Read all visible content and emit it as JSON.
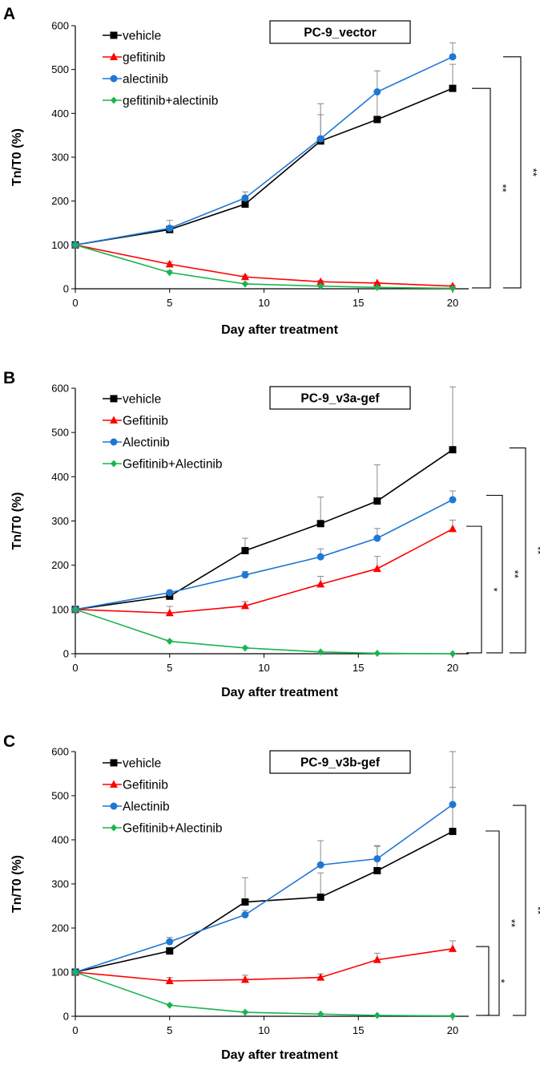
{
  "chart_data": [
    {
      "type": "line",
      "panel_label": "A",
      "title": "PC-9_vector",
      "xlabel": "Day after treatment",
      "ylabel": "Tn/T0  (%)",
      "x": [
        0,
        5,
        9,
        13,
        16,
        20
      ],
      "xticks": [
        "0",
        "5",
        "10",
        "15",
        "20"
      ],
      "yticks": [
        "0",
        "100",
        "200",
        "300",
        "400",
        "500",
        "600"
      ],
      "xlim": [
        0,
        20
      ],
      "ylim": [
        0,
        600
      ],
      "legend_position": "top-left",
      "series": [
        {
          "name": "vehicle",
          "color": "#000000",
          "marker": "square",
          "values": [
            100,
            135,
            193,
            337,
            386,
            457
          ],
          "errors": [
            0,
            8,
            10,
            60,
            65,
            55
          ]
        },
        {
          "name": "gefitinib",
          "color": "#ff0000",
          "marker": "triangle",
          "values": [
            100,
            56,
            27,
            16,
            13,
            6
          ],
          "errors": [
            0,
            5,
            4,
            3,
            2,
            2
          ]
        },
        {
          "name": "alectinib",
          "color": "#1f77d4",
          "marker": "circle",
          "values": [
            100,
            138,
            207,
            342,
            449,
            529
          ],
          "errors": [
            0,
            18,
            14,
            80,
            48,
            32
          ]
        },
        {
          "name": "gefitinib+alectinib",
          "color": "#19b54e",
          "marker": "diamond",
          "values": [
            100,
            37,
            11,
            6,
            3,
            1
          ],
          "errors": [
            0,
            4,
            2,
            1,
            1,
            0
          ]
        }
      ],
      "significance": [
        {
          "label": "**",
          "from_value": 2,
          "to_value": 457
        },
        {
          "label": "**",
          "from_value": 2,
          "to_value": 529
        }
      ]
    },
    {
      "type": "line",
      "panel_label": "B",
      "title": "PC-9_v3a-gef",
      "xlabel": "Day after treatment",
      "ylabel": "Tn/T0  (%)",
      "x": [
        0,
        5,
        9,
        13,
        16,
        20
      ],
      "xticks": [
        "0",
        "5",
        "10",
        "15",
        "20"
      ],
      "yticks": [
        "0",
        "100",
        "200",
        "300",
        "400",
        "500",
        "600"
      ],
      "xlim": [
        0,
        20
      ],
      "ylim": [
        0,
        600
      ],
      "legend_position": "top-left",
      "series": [
        {
          "name": "vehicle",
          "color": "#000000",
          "marker": "square",
          "values": [
            100,
            130,
            233,
            294,
            345,
            461
          ],
          "errors": [
            0,
            8,
            28,
            60,
            82,
            142
          ]
        },
        {
          "name": "Gefitinib",
          "color": "#ff0000",
          "marker": "triangle",
          "values": [
            100,
            92,
            108,
            157,
            192,
            282
          ],
          "errors": [
            0,
            15,
            10,
            18,
            28,
            20
          ]
        },
        {
          "name": "Alectinib",
          "color": "#1f77d4",
          "marker": "circle",
          "values": [
            100,
            138,
            178,
            219,
            261,
            348
          ],
          "errors": [
            0,
            5,
            8,
            18,
            22,
            20
          ]
        },
        {
          "name": "Gefitinib+Alectinib",
          "color": "#19b54e",
          "marker": "diamond",
          "values": [
            100,
            28,
            13,
            4,
            1,
            0
          ],
          "errors": [
            0,
            3,
            2,
            1,
            0,
            0
          ]
        }
      ],
      "significance": [
        {
          "label": "*",
          "from_value": 2,
          "to_value": 288
        },
        {
          "label": "**",
          "from_value": 2,
          "to_value": 358
        },
        {
          "label": "**",
          "from_value": 2,
          "to_value": 465
        }
      ]
    },
    {
      "type": "line",
      "panel_label": "C",
      "title": "PC-9_v3b-gef",
      "xlabel": "Day after treatment",
      "ylabel": "Tn/T0  (%)",
      "x": [
        0,
        5,
        9,
        13,
        16,
        20
      ],
      "xticks": [
        "0",
        "5",
        "10",
        "15",
        "20"
      ],
      "yticks": [
        "0",
        "100",
        "200",
        "300",
        "400",
        "500",
        "600"
      ],
      "xlim": [
        0,
        20
      ],
      "ylim": [
        0,
        600
      ],
      "legend_position": "top-left",
      "series": [
        {
          "name": "vehicle",
          "color": "#000000",
          "marker": "square",
          "values": [
            100,
            148,
            259,
            270,
            330,
            419
          ],
          "errors": [
            0,
            8,
            55,
            55,
            55,
            100
          ]
        },
        {
          "name": "Gefitinib",
          "color": "#ff0000",
          "marker": "triangle",
          "values": [
            100,
            80,
            83,
            88,
            128,
            153
          ],
          "errors": [
            0,
            8,
            10,
            8,
            15,
            18
          ]
        },
        {
          "name": "Alectinib",
          "color": "#1f77d4",
          "marker": "circle",
          "values": [
            100,
            169,
            230,
            343,
            357,
            480
          ],
          "errors": [
            0,
            10,
            10,
            55,
            30,
            120
          ]
        },
        {
          "name": "Gefitinib+Alectinib",
          "color": "#19b54e",
          "marker": "diamond",
          "values": [
            100,
            25,
            9,
            5,
            2,
            1
          ],
          "errors": [
            0,
            3,
            2,
            1,
            0,
            0
          ]
        }
      ],
      "significance": [
        {
          "label": "*",
          "from_value": 2,
          "to_value": 158
        },
        {
          "label": "**",
          "from_value": 2,
          "to_value": 420
        },
        {
          "label": "**",
          "from_value": 2,
          "to_value": 478
        }
      ]
    }
  ]
}
